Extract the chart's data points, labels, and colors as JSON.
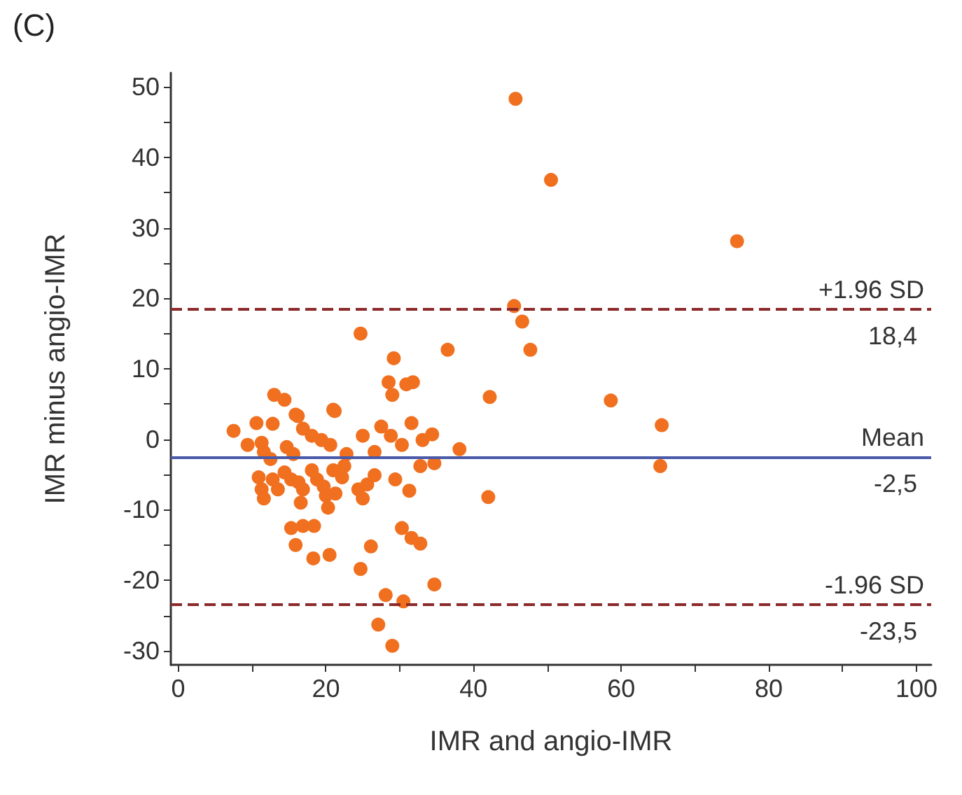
{
  "chart_data": {
    "type": "scatter",
    "title": "(C)",
    "xlabel": "IMR and angio-IMR",
    "ylabel": "IMR minus angio-IMR",
    "marker": "circle",
    "grid": false,
    "xlim": [
      -1,
      102
    ],
    "xticks": [
      0,
      {
        "value": 10,
        "label": null
      },
      20,
      {
        "value": 30,
        "label": null
      },
      40,
      {
        "value": 50,
        "label": null
      },
      60,
      {
        "value": 70,
        "label": null
      },
      80,
      {
        "value": 90,
        "label": null
      },
      100
    ],
    "ylim": [
      -32,
      52
    ],
    "yticks": [
      -30,
      {
        "value": -25,
        "label": null
      },
      -20,
      {
        "value": -15,
        "label": null
      },
      -10,
      {
        "value": -5,
        "label": null
      },
      0,
      {
        "value": 5,
        "label": null
      },
      10,
      {
        "value": 15,
        "label": null
      },
      20,
      {
        "value": 25,
        "label": null
      },
      30,
      {
        "value": 35,
        "label": null
      },
      40,
      {
        "value": 45,
        "label": null
      },
      50
    ],
    "series": [
      {
        "color": "#f07020",
        "x": [
          45.7,
          50.5,
          75.7,
          45.5,
          46.6,
          47.7,
          24.7,
          29.2,
          36.5,
          28.5,
          29.0,
          30.9,
          31.8,
          42.2,
          58.6,
          13.0,
          14.4,
          16.2,
          21.2,
          7.5,
          9.4,
          10.6,
          12.8,
          15.9,
          11.3,
          11.6,
          12.5,
          14.7,
          15.6,
          16.9,
          18.1,
          19.4,
          20.6,
          22.8,
          21.0,
          25.0,
          26.6,
          27.5,
          28.8,
          30.3,
          31.6,
          33.1,
          34.4,
          38.1,
          32.8,
          34.7,
          42.0,
          10.9,
          11.3,
          11.6,
          12.8,
          13.5,
          14.4,
          15.3,
          16.3,
          16.9,
          16.6,
          18.1,
          18.8,
          19.7,
          20.0,
          20.3,
          21.3,
          21.0,
          22.2,
          22.5,
          15.3,
          16.9,
          18.4,
          15.9,
          18.3,
          20.5,
          24.4,
          25.0,
          25.6,
          26.6,
          26.1,
          24.7,
          29.4,
          31.3,
          30.3,
          31.6,
          32.8,
          34.7,
          28.1,
          30.5,
          27.1,
          29.0,
          65.5,
          65.3
        ],
        "values": [
          48.3,
          36.8,
          28.1,
          18.9,
          16.7,
          12.7,
          15.0,
          11.5,
          12.7,
          8.1,
          6.3,
          7.8,
          8.1,
          6.0,
          5.5,
          6.3,
          5.6,
          3.3,
          4.0,
          1.2,
          -0.8,
          2.3,
          2.2,
          3.5,
          -0.5,
          -1.8,
          -2.8,
          -1.1,
          -2.1,
          1.5,
          0.5,
          -0.1,
          -0.8,
          -2.1,
          4.2,
          0.5,
          -1.8,
          1.8,
          0.5,
          -0.8,
          2.3,
          -0.1,
          0.7,
          -1.4,
          -3.8,
          -3.4,
          -8.2,
          -5.4,
          -7.1,
          -8.4,
          -5.7,
          -7.1,
          -4.7,
          -5.7,
          -6.1,
          -7.1,
          -9.0,
          -4.4,
          -5.7,
          -6.7,
          -8.0,
          -9.7,
          -7.7,
          -4.4,
          -5.4,
          -3.8,
          -12.6,
          -12.3,
          -12.3,
          -15.0,
          -16.9,
          -16.4,
          -7.1,
          -8.4,
          -6.4,
          -5.1,
          -15.2,
          -18.4,
          -5.7,
          -7.3,
          -12.6,
          -14.0,
          -14.8,
          -20.6,
          -22.1,
          -23.0,
          -26.3,
          -29.3,
          2.0,
          -3.8
        ]
      }
    ],
    "ref_lines": [
      {
        "axis": "y",
        "value": 18.4,
        "label": "+1.96 SD",
        "color": "#8b2a2a",
        "line_style": "dashed"
      },
      {
        "axis": "y",
        "value": -2.5,
        "label": "Mean",
        "color": "#4a5aa8",
        "line_style": "solid"
      },
      {
        "axis": "y",
        "value": -23.5,
        "label": "-1.96 SD",
        "color": "#8b2a2a",
        "line_style": "dashed"
      }
    ],
    "annotations": [
      {
        "text": "18,4",
        "y": 18.4
      },
      {
        "text": "-2,5",
        "y": -2.5
      },
      {
        "text": "-23,5",
        "y": -23.5
      }
    ]
  }
}
